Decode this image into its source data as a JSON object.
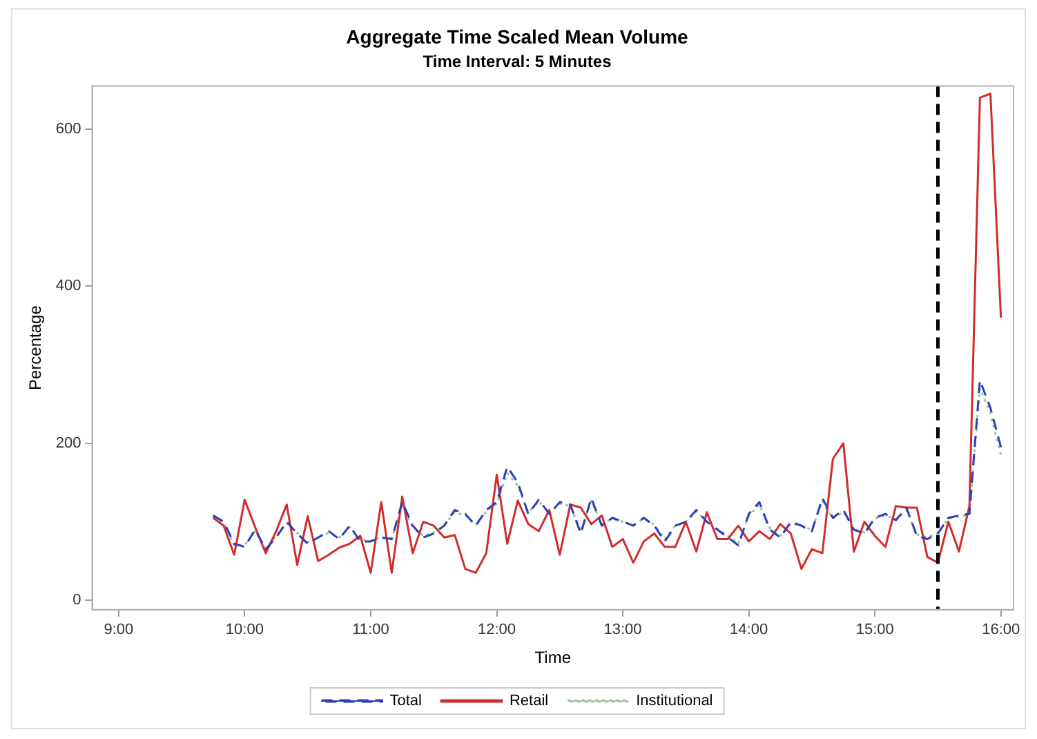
{
  "chart_data": {
    "type": "line",
    "title": "Aggregate Time Scaled Mean Volume",
    "subtitle": "Time Interval: 5 Minutes",
    "xlabel": "Time",
    "ylabel": "Percentage",
    "x": [
      9.75,
      9.8333,
      9.9167,
      10,
      10.0833,
      10.1667,
      10.25,
      10.3333,
      10.4167,
      10.5,
      10.5833,
      10.6667,
      10.75,
      10.8333,
      10.9167,
      11,
      11.0833,
      11.1667,
      11.25,
      11.3333,
      11.4167,
      11.5,
      11.5833,
      11.6667,
      11.75,
      11.8333,
      11.9167,
      12,
      12.0833,
      12.1667,
      12.25,
      12.3333,
      12.4167,
      12.5,
      12.5833,
      12.6667,
      12.75,
      12.8333,
      12.9167,
      13,
      13.0833,
      13.1667,
      13.25,
      13.3333,
      13.4167,
      13.5,
      13.5833,
      13.6667,
      13.75,
      13.8333,
      13.9167,
      14,
      14.0833,
      14.1667,
      14.25,
      14.3333,
      14.4167,
      14.5,
      14.5833,
      14.6667,
      14.75,
      14.8333,
      14.9167,
      15,
      15.0833,
      15.1667,
      15.25,
      15.3333,
      15.4167,
      15.5,
      15.5833,
      15.6667,
      15.75,
      15.8333,
      15.9167,
      16
    ],
    "series": [
      {
        "name": "Total",
        "color": "#2c3fb8",
        "line_style": "dashed",
        "values": [
          108,
          100,
          72,
          68,
          90,
          65,
          80,
          100,
          85,
          72,
          80,
          88,
          78,
          95,
          75,
          75,
          80,
          78,
          125,
          95,
          80,
          85,
          95,
          115,
          110,
          95,
          115,
          125,
          170,
          150,
          110,
          128,
          110,
          125,
          122,
          85,
          130,
          95,
          105,
          100,
          95,
          105,
          95,
          75,
          95,
          100,
          115,
          100,
          90,
          80,
          70,
          110,
          125,
          90,
          80,
          100,
          95,
          88,
          130,
          105,
          115,
          90,
          85,
          105,
          110,
          102,
          118,
          82,
          78,
          85,
          105,
          108,
          110,
          280,
          245,
          195
        ]
      },
      {
        "name": "Retail",
        "color": "#d02c2c",
        "line_style": "solid",
        "values": [
          105,
          95,
          58,
          128,
          93,
          60,
          88,
          122,
          45,
          107,
          50,
          58,
          67,
          72,
          82,
          35,
          125,
          35,
          132,
          60,
          100,
          95,
          80,
          83,
          40,
          35,
          60,
          160,
          72,
          127,
          97,
          88,
          115,
          58,
          122,
          118,
          97,
          108,
          68,
          78,
          48,
          75,
          85,
          68,
          68,
          100,
          62,
          112,
          78,
          78,
          95,
          75,
          88,
          78,
          97,
          85,
          40,
          65,
          60,
          180,
          200,
          62,
          100,
          82,
          68,
          120,
          118,
          118,
          55,
          48,
          100,
          62,
          120,
          640,
          645,
          360
        ]
      },
      {
        "name": "Institutional",
        "color": "#9cc49c",
        "line_style": "dotted",
        "values": [
          106,
          98,
          70,
          70,
          88,
          66,
          82,
          98,
          86,
          74,
          80,
          86,
          80,
          93,
          77,
          76,
          80,
          79,
          120,
          94,
          82,
          86,
          96,
          112,
          108,
          96,
          113,
          123,
          162,
          146,
          112,
          126,
          111,
          123,
          120,
          88,
          127,
          97,
          104,
          100,
          96,
          104,
          96,
          78,
          95,
          100,
          113,
          100,
          91,
          82,
          72,
          108,
          122,
          92,
          82,
          98,
          95,
          90,
          126,
          104,
          113,
          91,
          86,
          104,
          108,
          103,
          115,
          84,
          80,
          86,
          104,
          107,
          109,
          270,
          238,
          185
        ]
      }
    ],
    "xlim": [
      8.79,
      16.1
    ],
    "xticks": [
      {
        "value": 9,
        "label": "9:00"
      },
      {
        "value": 10,
        "label": "10:00"
      },
      {
        "value": 11,
        "label": "11:00"
      },
      {
        "value": 12,
        "label": "12:00"
      },
      {
        "value": 13,
        "label": "13:00"
      },
      {
        "value": 14,
        "label": "14:00"
      },
      {
        "value": 15,
        "label": "15:00"
      },
      {
        "value": 16,
        "label": "16:00"
      }
    ],
    "ylim": [
      -12,
      655
    ],
    "yticks": [
      0,
      200,
      400,
      600
    ],
    "ref_lines": [
      {
        "axis": "x",
        "value": 15.5,
        "color": "#000000",
        "line_style": "dashed"
      }
    ],
    "grid": false,
    "legend": "bottom",
    "marker": "none"
  }
}
